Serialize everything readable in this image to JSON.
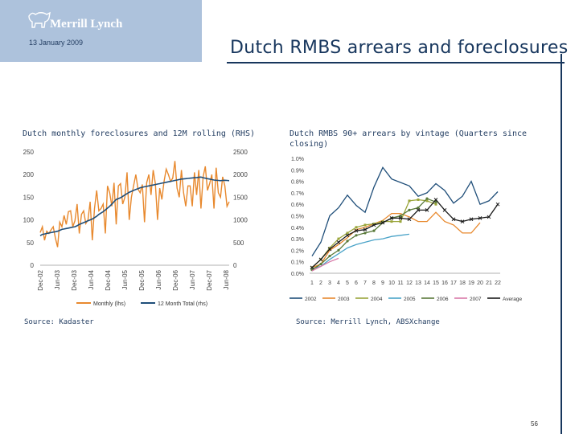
{
  "header": {
    "brand": "Merrill Lynch",
    "date": "13 January 2009",
    "title": "Dutch RMBS arrears and foreclosures",
    "page_number": "56"
  },
  "colors": {
    "brand_panel": "#adc2dc",
    "title": "#17365d",
    "monthly": "#e8892e",
    "rolling": "#1f4e79"
  },
  "left_panel": {
    "subtitle": "Dutch monthly foreclosures and 12M rolling (RHS)",
    "source": "Source: Kadaster"
  },
  "right_panel": {
    "subtitle": "Dutch RMBS 90+ arrears by vintage (Quarters since closing)",
    "source": "Source: Merrill Lynch, ABSXchange"
  },
  "chart_data": [
    {
      "type": "line",
      "y_left": {
        "ticks": [
          "0",
          "50",
          "100",
          "150",
          "200",
          "250"
        ],
        "min": 0,
        "max": 250
      },
      "y_right": {
        "ticks": [
          "0",
          "500",
          "1000",
          "1500",
          "2000",
          "2500"
        ],
        "min": 0,
        "max": 2500
      },
      "x_ticks": [
        "Dec-02",
        "Jun-03",
        "Dec-03",
        "Jun-04",
        "Dec-04",
        "Jun-05",
        "Dec-05",
        "Jun-06",
        "Dec-06",
        "Jun-07",
        "Dec-07",
        "Jun-08"
      ],
      "grid": false,
      "legend_position": "bottom",
      "series": [
        {
          "name": "Monthly (lhs)",
          "axis": "left",
          "values": [
            72,
            85,
            55,
            75,
            70,
            78,
            85,
            60,
            40,
            95,
            85,
            110,
            90,
            118,
            120,
            85,
            98,
            135,
            70,
            112,
            120,
            92,
            100,
            140,
            55,
            125,
            165,
            120,
            125,
            135,
            70,
            175,
            160,
            130,
            182,
            90,
            175,
            180,
            135,
            150,
            205,
            100,
            150,
            175,
            200,
            168,
            160,
            178,
            95,
            182,
            200,
            155,
            210,
            180,
            100,
            170,
            145,
            185,
            212,
            200,
            185,
            192,
            230,
            170,
            150,
            210,
            160,
            130,
            175,
            175,
            130,
            205,
            155,
            210,
            125,
            195,
            218,
            165,
            180,
            200,
            125,
            215,
            160,
            150,
            195,
            175,
            130,
            140
          ]
        },
        {
          "name": "12 Month Total (rhs)",
          "axis": "right",
          "values": [
            650,
            680,
            690,
            700,
            710,
            720,
            730,
            740,
            750,
            770,
            790,
            800,
            810,
            820,
            830,
            840,
            850,
            870,
            900,
            920,
            940,
            960,
            980,
            1000,
            1020,
            1050,
            1080,
            1120,
            1150,
            1180,
            1220,
            1260,
            1300,
            1350,
            1400,
            1450,
            1470,
            1490,
            1520,
            1550,
            1580,
            1610,
            1630,
            1650,
            1670,
            1690,
            1710,
            1720,
            1730,
            1740,
            1750,
            1760,
            1770,
            1780,
            1790,
            1800,
            1810,
            1820,
            1830,
            1840,
            1850,
            1860,
            1870,
            1880,
            1890,
            1900,
            1905,
            1910,
            1915,
            1920,
            1925,
            1930,
            1935,
            1940,
            1945,
            1930,
            1920,
            1910,
            1900,
            1890,
            1880,
            1875,
            1870,
            1865,
            1870,
            1875,
            1870,
            1865
          ]
        }
      ]
    },
    {
      "type": "line",
      "y_ticks": [
        "0.0%",
        "0.1%",
        "0.2%",
        "0.3%",
        "0.4%",
        "0.5%",
        "0.6%",
        "0.7%",
        "0.8%",
        "0.9%",
        "1.0%"
      ],
      "ylim": [
        0,
        1.0
      ],
      "x": [
        1,
        2,
        3,
        4,
        5,
        6,
        7,
        8,
        9,
        10,
        11,
        12,
        13,
        14,
        15,
        16,
        17,
        18,
        19,
        20,
        21,
        22
      ],
      "grid": false,
      "legend_position": "bottom",
      "series": [
        {
          "name": "2002",
          "color": "#1f4e79",
          "marker": "none",
          "values": [
            0.15,
            0.27,
            0.5,
            0.57,
            0.68,
            0.59,
            0.53,
            0.75,
            0.92,
            0.82,
            0.79,
            0.76,
            0.67,
            0.7,
            0.78,
            0.72,
            0.61,
            0.67,
            0.8,
            0.6,
            0.63,
            0.71
          ]
        },
        {
          "name": "2003",
          "color": "#e8892e",
          "marker": "none",
          "values": [
            0.05,
            0.08,
            0.2,
            0.25,
            0.31,
            0.38,
            0.4,
            0.43,
            0.46,
            0.52,
            0.52,
            0.49,
            0.45,
            0.45,
            0.53,
            0.45,
            0.42,
            0.35,
            0.35,
            0.44,
            null,
            null
          ]
        },
        {
          "name": "2004",
          "color": "#9aa53a",
          "marker": "square",
          "values": [
            0.05,
            0.12,
            0.22,
            0.3,
            0.35,
            0.4,
            0.42,
            0.43,
            0.45,
            0.45,
            0.45,
            0.63,
            0.64,
            0.63,
            0.6,
            null,
            null,
            null,
            null,
            null,
            null,
            null
          ]
        },
        {
          "name": "2005",
          "color": "#4aa3c8",
          "marker": "none",
          "values": [
            0.04,
            0.06,
            0.12,
            0.17,
            0.22,
            0.25,
            0.27,
            0.29,
            0.3,
            0.32,
            0.33,
            0.34,
            null,
            null,
            null,
            null,
            null,
            null,
            null,
            null,
            null,
            null
          ]
        },
        {
          "name": "2006",
          "color": "#5a7a3a",
          "marker": "dot",
          "values": [
            0.03,
            0.08,
            0.15,
            0.2,
            0.28,
            0.33,
            0.35,
            0.37,
            0.44,
            0.48,
            0.5,
            0.55,
            0.57,
            0.65,
            0.62,
            null,
            null,
            null,
            null,
            null,
            null,
            null
          ]
        },
        {
          "name": "2007",
          "color": "#d87aa8",
          "marker": "none",
          "values": [
            0.02,
            0.06,
            0.1,
            0.13,
            null,
            null,
            null,
            null,
            null,
            null,
            null,
            null,
            null,
            null,
            null,
            null,
            null,
            null,
            null,
            null,
            null,
            null
          ]
        },
        {
          "name": "Average",
          "color": "#1a1a1a",
          "marker": "x",
          "values": [
            0.05,
            0.12,
            0.21,
            0.27,
            0.33,
            0.37,
            0.38,
            0.42,
            0.44,
            0.48,
            0.48,
            0.47,
            0.55,
            0.55,
            0.64,
            0.55,
            0.47,
            0.45,
            0.47,
            0.48,
            0.49,
            0.6
          ]
        }
      ]
    }
  ]
}
